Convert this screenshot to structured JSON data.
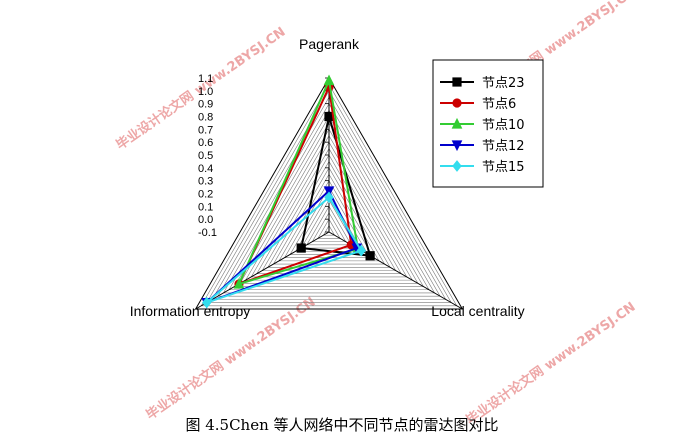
{
  "caption": "图 4.5Chen 等人网络中不同节点的雷达图对比",
  "watermark": "毕业设计论文网 www.2BYSJ.CN",
  "chart_data": {
    "type": "radar",
    "axes": [
      "Pagerank",
      "Local centrality",
      "Information entropy"
    ],
    "rlim": [
      -0.1,
      1.1
    ],
    "r_ticks": [
      1.1,
      1.0,
      0.9,
      0.8,
      0.7,
      0.6,
      0.5,
      0.4,
      0.3,
      0.2,
      0.1,
      0.0,
      -0.1
    ],
    "grid": true,
    "legend_position": "top-right",
    "series": [
      {
        "name": "节点23",
        "color": "#000000",
        "marker": "square",
        "values": [
          0.8,
          0.27,
          0.15
        ]
      },
      {
        "name": "节点6",
        "color": "#cc0000",
        "marker": "circle",
        "values": [
          1.03,
          0.1,
          0.71
        ]
      },
      {
        "name": "节点10",
        "color": "#33cc33",
        "marker": "triangle-up",
        "values": [
          1.08,
          0.16,
          0.71
        ]
      },
      {
        "name": "节点12",
        "color": "#0000cc",
        "marker": "triangle-down",
        "values": [
          0.22,
          0.15,
          1.0
        ]
      },
      {
        "name": "节点15",
        "color": "#33ddee",
        "marker": "diamond",
        "values": [
          0.17,
          0.19,
          1.0
        ]
      }
    ]
  }
}
